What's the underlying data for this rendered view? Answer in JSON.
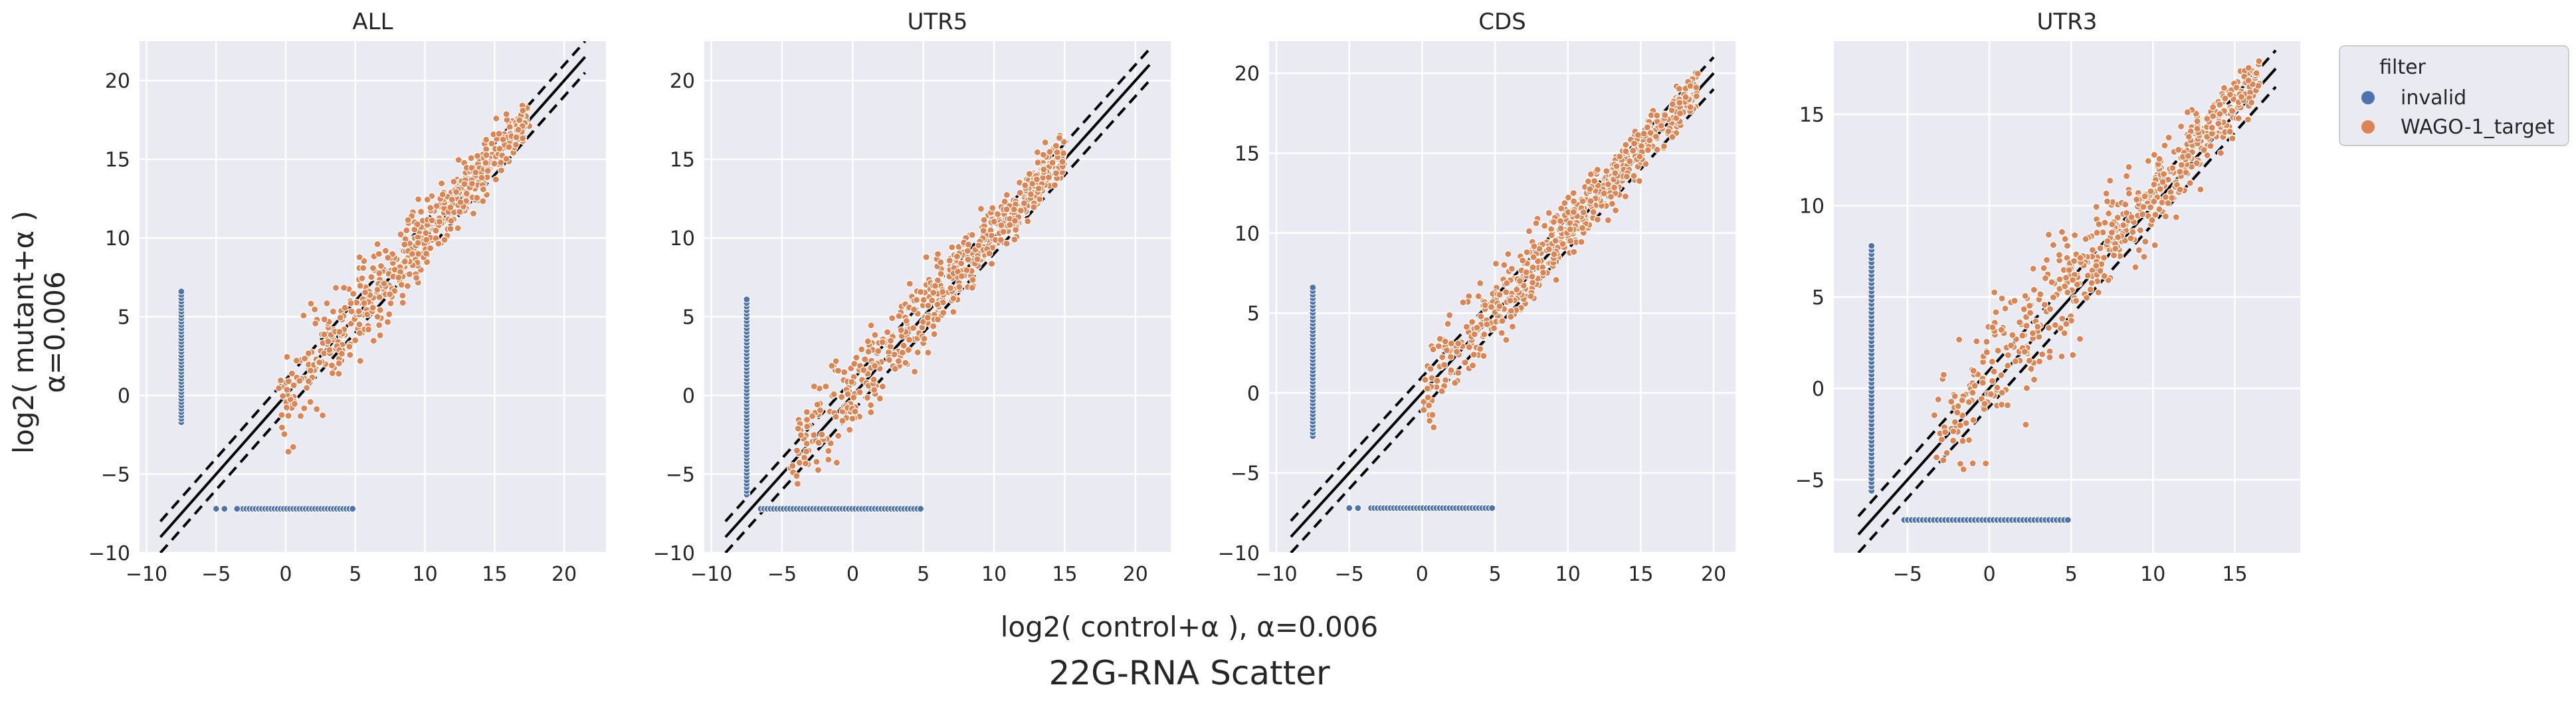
{
  "figure": {
    "suptitle": "22G-RNA Scatter",
    "xlabel": "log2( control+α ), α=0.006",
    "ylabel_line1": "log2( mutant+α )",
    "ylabel_line2": "α=0.006"
  },
  "legend": {
    "title": "filter",
    "placement": "upper right, outside axes",
    "entries": [
      {
        "label": "invalid",
        "color": "#4c72b0"
      },
      {
        "label": "WAGO-1_target",
        "color": "#dd8452"
      }
    ]
  },
  "colors": {
    "invalid": "#4c72b0",
    "target": "#dd8452",
    "axes_bg": "#eaeaf2",
    "grid": "#ffffff"
  },
  "chart_data": [
    {
      "type": "scatter",
      "title": "ALL",
      "xlim": [
        -10.5,
        23
      ],
      "ylim": [
        -10,
        22.5
      ],
      "xticks": [
        "−10",
        "−5",
        "0",
        "5",
        "10",
        "15",
        "20"
      ],
      "yticks": [
        "−10",
        "−5",
        "0",
        "5",
        "10",
        "15",
        "20"
      ],
      "grid": true,
      "reference_lines": {
        "identity": "y = x",
        "dashed_offsets": [
          -1,
          1
        ]
      },
      "series": [
        {
          "name": "invalid",
          "groups": [
            {
              "kind": "vertical",
              "x": -7.5,
              "y_range": [
                -1.7,
                6.6
              ],
              "n": 40
            },
            {
              "kind": "horizontal",
              "y": -7.2,
              "x_range": [
                -3.5,
                4.8
              ],
              "n": 38
            },
            {
              "kind": "points",
              "x": [
                -5.0,
                -4.4,
                -3.5
              ],
              "y": [
                -7.2,
                -7.2,
                -7.2
              ]
            }
          ]
        },
        {
          "name": "WAGO-1_target",
          "groups": [
            {
              "kind": "cloud",
              "x_range": [
                -0.5,
                17.5
              ],
              "intercept": 0.2,
              "spread_low": 1.9,
              "spread_high": 0.6,
              "n": 600
            }
          ]
        }
      ]
    },
    {
      "type": "scatter",
      "title": "UTR5",
      "xlim": [
        -10.5,
        22.5
      ],
      "ylim": [
        -10,
        22.5
      ],
      "xticks": [
        "−10",
        "−5",
        "0",
        "5",
        "10",
        "15",
        "20"
      ],
      "yticks": [
        "−10",
        "−5",
        "0",
        "5",
        "10",
        "15",
        "20"
      ],
      "grid": true,
      "reference_lines": {
        "identity": "y = x",
        "dashed_offsets": [
          -1,
          1
        ]
      },
      "series": [
        {
          "name": "invalid",
          "groups": [
            {
              "kind": "vertical",
              "x": -7.5,
              "y_range": [
                -6.3,
                6.1
              ],
              "n": 55
            },
            {
              "kind": "horizontal",
              "y": -7.2,
              "x_range": [
                -6.5,
                4.8
              ],
              "n": 50
            }
          ]
        },
        {
          "name": "WAGO-1_target",
          "groups": [
            {
              "kind": "cloud",
              "x_range": [
                -4.5,
                15.0
              ],
              "intercept": 0.4,
              "spread_low": 1.5,
              "spread_high": 0.7,
              "n": 600
            }
          ]
        }
      ]
    },
    {
      "type": "scatter",
      "title": "CDS",
      "xlim": [
        -10.5,
        21.5
      ],
      "ylim": [
        -10,
        22
      ],
      "xticks": [
        "−10",
        "−5",
        "0",
        "5",
        "10",
        "15",
        "20"
      ],
      "yticks": [
        "−10",
        "−5",
        "0",
        "5",
        "10",
        "15",
        "20"
      ],
      "grid": true,
      "reference_lines": {
        "identity": "y = x",
        "dashed_offsets": [
          -1,
          1
        ]
      },
      "series": [
        {
          "name": "invalid",
          "groups": [
            {
              "kind": "vertical",
              "x": -7.5,
              "y_range": [
                -2.7,
                6.6
              ],
              "n": 42
            },
            {
              "kind": "horizontal",
              "y": -7.2,
              "x_range": [
                -3.5,
                4.8
              ],
              "n": 38
            },
            {
              "kind": "points",
              "x": [
                -5.0,
                -4.4
              ],
              "y": [
                -7.2,
                -7.2
              ]
            }
          ]
        },
        {
          "name": "WAGO-1_target",
          "groups": [
            {
              "kind": "cloud",
              "x_range": [
                0.0,
                19.0
              ],
              "intercept": 0.2,
              "spread_low": 1.4,
              "spread_high": 0.6,
              "n": 600
            }
          ]
        }
      ]
    },
    {
      "type": "scatter",
      "title": "UTR3",
      "xlim": [
        -9.5,
        19
      ],
      "ylim": [
        -9,
        19
      ],
      "xticks": [
        "−5",
        "0",
        "5",
        "10",
        "15"
      ],
      "yticks": [
        "−5",
        "0",
        "5",
        "10",
        "15"
      ],
      "grid": true,
      "reference_lines": {
        "identity": "y = x",
        "dashed_offsets": [
          -1,
          1
        ]
      },
      "series": [
        {
          "name": "invalid",
          "groups": [
            {
              "kind": "vertical",
              "x": -7.2,
              "y_range": [
                -5.6,
                7.8
              ],
              "n": 60
            },
            {
              "kind": "horizontal",
              "y": -7.2,
              "x_range": [
                -5.2,
                4.8
              ],
              "n": 45
            }
          ]
        },
        {
          "name": "WAGO-1_target",
          "groups": [
            {
              "kind": "cloud",
              "x_range": [
                -3.5,
                16.5
              ],
              "intercept": 0.6,
              "spread_low": 2.0,
              "spread_high": 0.7,
              "n": 600
            }
          ]
        }
      ]
    }
  ]
}
